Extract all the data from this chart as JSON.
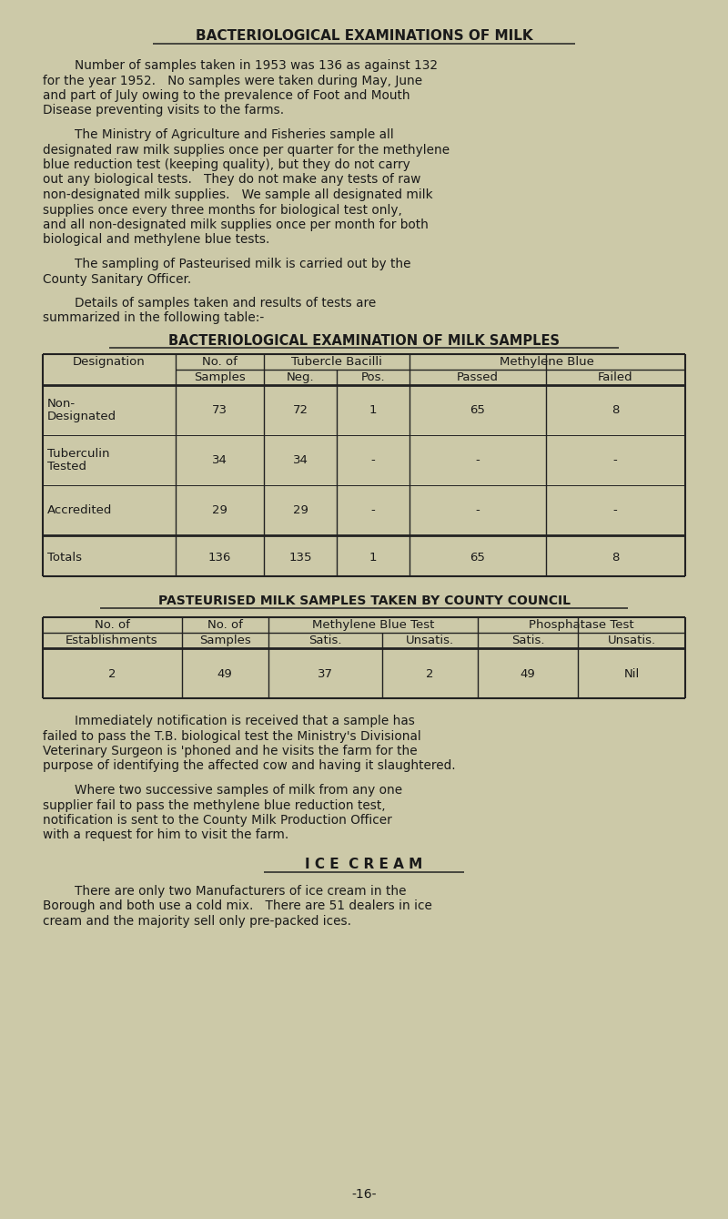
{
  "bg_color": "#ccc9a8",
  "text_color": "#1a1a1a",
  "title": "BACTERIOLOGICAL EXAMINATIONS OF MILK",
  "para1_lines": [
    "        Number of samples taken in 1953 was 136 as against 132",
    "for the year 1952.   No samples were taken during May, June",
    "and part of July owing to the prevalence of Foot and Mouth",
    "Disease preventing visits to the farms."
  ],
  "para2_lines": [
    "        The Ministry of Agriculture and Fisheries sample all",
    "designated raw milk supplies once per quarter for the methylene",
    "blue reduction test (keeping quality), but they do not carry",
    "out any biological tests.   They do not make any tests of raw",
    "non-designated milk supplies.   We sample all designated milk",
    "supplies once every three months for biological test only,",
    "and all non-designated milk supplies once per month for both",
    "biological and methylene blue tests."
  ],
  "para3_lines": [
    "        The sampling of Pasteurised milk is carried out by the",
    "County Sanitary Officer."
  ],
  "para4_lines": [
    "        Details of samples taken and results of tests are",
    "summarized in the following table:-"
  ],
  "table1_title": "BACTERIOLOGICAL EXAMINATION OF MILK SAMPLES",
  "table2_title": "PASTEURISED MILK SAMPLES TAKEN BY COUNTY COUNCIL",
  "para5_lines": [
    "        Immediately notification is received that a sample has",
    "failed to pass the T.B. biological test the Ministry's Divisional",
    "Veterinary Surgeon is 'phoned and he visits the farm for the",
    "purpose of identifying the affected cow and having it slaughtered."
  ],
  "para6_lines": [
    "        Where two successive samples of milk from any one",
    "supplier fail to pass the methylene blue reduction test,",
    "notification is sent to the County Milk Production Officer",
    "with a request for him to visit the farm."
  ],
  "ice_cream_title": "I C E  C R E A M",
  "para7_lines": [
    "        There are only two Manufacturers of ice cream in the",
    "Borough and both use a cold mix.   There are 51 dealers in ice",
    "cream and the majority sell only pre-packed ices."
  ],
  "page_num": "-16-"
}
